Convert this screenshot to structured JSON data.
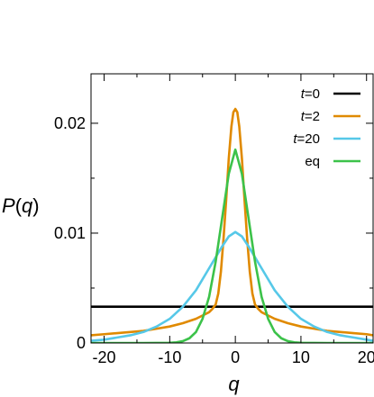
{
  "chart_data": {
    "type": "line",
    "title": "",
    "xlabel": "q",
    "ylabel_prefix": "P(",
    "ylabel_var": "q",
    "ylabel_suffix": ")",
    "xlim": [
      -22,
      21
    ],
    "ylim": [
      0,
      0.0245
    ],
    "xticks": [
      -20,
      -10,
      0,
      10,
      20
    ],
    "xtick_labels": [
      "-20",
      "-10",
      "0",
      "10",
      "20"
    ],
    "xminor": [
      -15,
      -5,
      5,
      15
    ],
    "yticks": [
      0,
      0.01,
      0.02
    ],
    "ytick_labels": [
      "0",
      "0.01",
      "0.02"
    ],
    "yminor": [
      0.005,
      0.015
    ],
    "grid": false,
    "legend_position": "top-right",
    "series": [
      {
        "name_var": "t",
        "name_rest": "=0",
        "color": "#000000",
        "x": [
          -22,
          21
        ],
        "y": [
          0.0033,
          0.0033
        ]
      },
      {
        "name_var": "t",
        "name_rest": "=2",
        "color": "#E08A00",
        "x": [
          -22,
          -20,
          -18,
          -16,
          -14,
          -12,
          -10,
          -8,
          -6,
          -5,
          -4,
          -3.5,
          -3,
          -2.6,
          -2.2,
          -1.8,
          -1.4,
          -1,
          -0.6,
          -0.3,
          0,
          0.3,
          0.6,
          1,
          1.4,
          1.8,
          2.2,
          2.6,
          3,
          3.5,
          4,
          5,
          6,
          8,
          10,
          12,
          14,
          16,
          18,
          20,
          21
        ],
        "y": [
          0.0007,
          0.0008,
          0.0009,
          0.001,
          0.0011,
          0.0013,
          0.0015,
          0.0018,
          0.0022,
          0.0025,
          0.0028,
          0.0031,
          0.0035,
          0.0045,
          0.0065,
          0.0095,
          0.013,
          0.0168,
          0.0197,
          0.021,
          0.0213,
          0.021,
          0.0197,
          0.0168,
          0.013,
          0.0095,
          0.0065,
          0.0045,
          0.0035,
          0.0031,
          0.0028,
          0.0025,
          0.0022,
          0.0018,
          0.0015,
          0.0013,
          0.0011,
          0.001,
          0.0009,
          0.0008,
          0.0007
        ]
      },
      {
        "name_var": "t",
        "name_rest": "=20",
        "color": "#56C8E8",
        "x": [
          -22,
          -20,
          -18,
          -16,
          -14,
          -12,
          -10,
          -8,
          -6,
          -4,
          -2,
          -1,
          0,
          1,
          2,
          4,
          6,
          8,
          10,
          12,
          14,
          16,
          18,
          20,
          21
        ],
        "y": [
          0.0002,
          0.0003,
          0.0005,
          0.0007,
          0.001,
          0.0015,
          0.0022,
          0.0033,
          0.0048,
          0.0068,
          0.0088,
          0.0097,
          0.0101,
          0.0097,
          0.0088,
          0.0068,
          0.0048,
          0.0033,
          0.0022,
          0.0015,
          0.001,
          0.0007,
          0.0005,
          0.0003,
          0.0002
        ]
      },
      {
        "name_var": "",
        "name_rest": "eq",
        "color": "#3CC24A",
        "x": [
          -22,
          -14,
          -10,
          -9,
          -8,
          -7,
          -6,
          -5,
          -4,
          -3,
          -2,
          -1,
          0,
          1,
          2,
          3,
          4,
          5,
          6,
          7,
          8,
          9,
          10,
          14,
          21
        ],
        "y": [
          0,
          0,
          2e-05,
          6e-05,
          0.00017,
          0.00043,
          0.001,
          0.0022,
          0.0042,
          0.0074,
          0.0114,
          0.0154,
          0.0176,
          0.0154,
          0.0114,
          0.0074,
          0.0042,
          0.0022,
          0.001,
          0.00043,
          0.00017,
          6e-05,
          2e-05,
          0,
          0
        ]
      }
    ]
  }
}
